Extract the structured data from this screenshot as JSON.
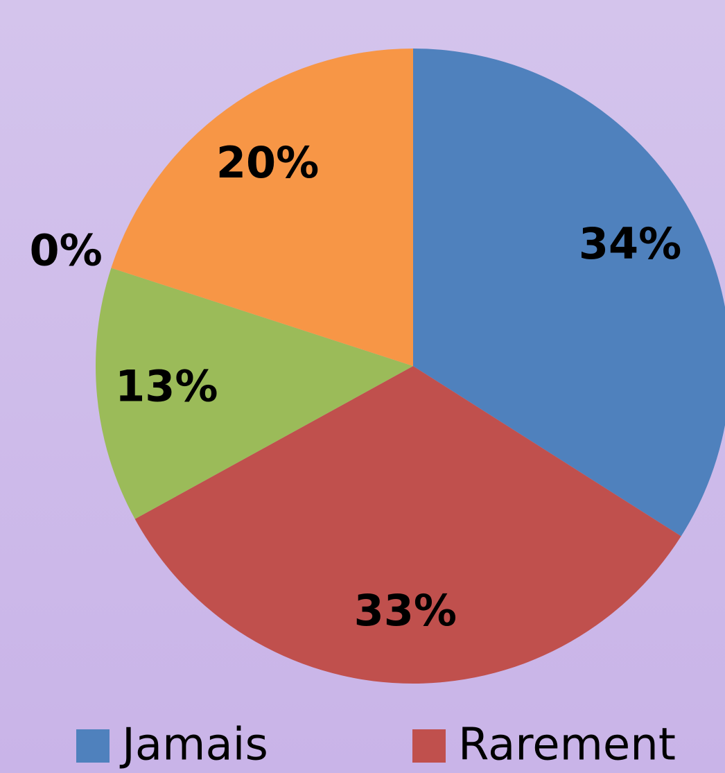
{
  "chart_data": {
    "type": "pie",
    "categories": [
      "Jamais",
      "Rarement",
      null,
      null,
      null
    ],
    "values": [
      34,
      33,
      13,
      0,
      20
    ],
    "value_labels": [
      "34%",
      "33%",
      "13%",
      "0%",
      "20%"
    ],
    "colors": [
      "#4f81bd",
      "#c0504d",
      "#9bbb59",
      "#8064a2",
      "#f79646"
    ],
    "legend": "bottom"
  }
}
